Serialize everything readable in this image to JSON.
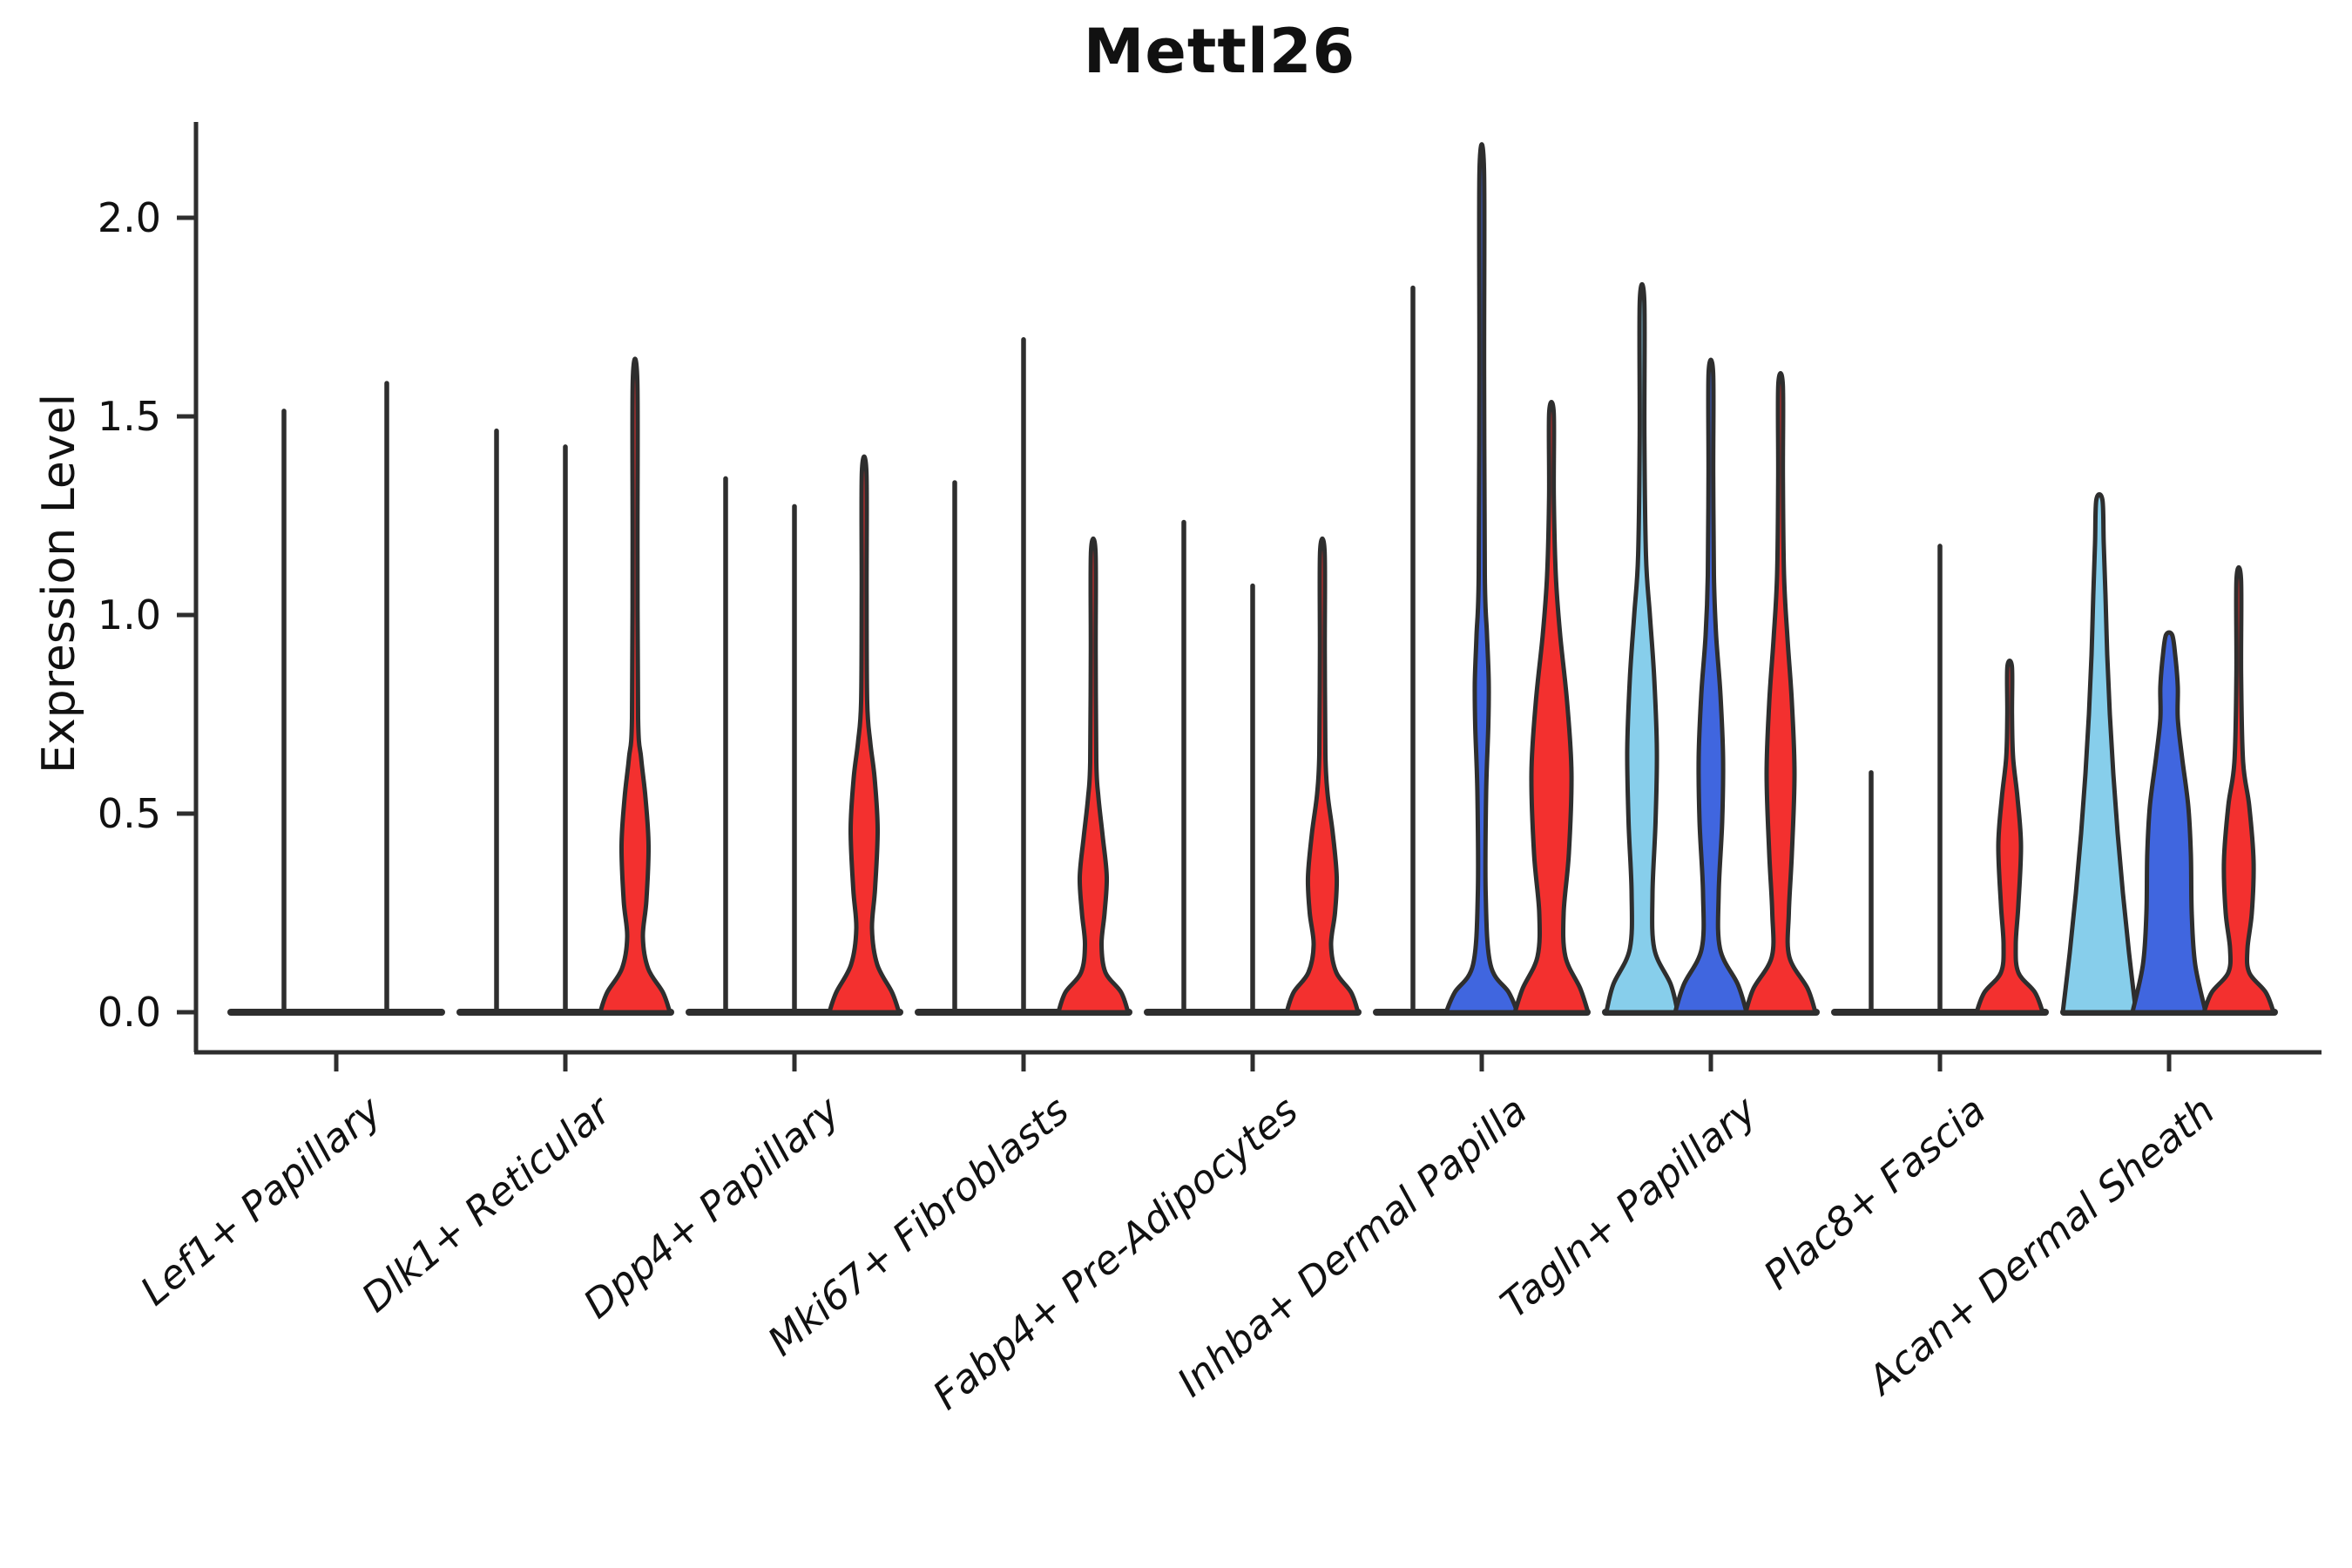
{
  "title": "Mettl26",
  "ylabel": "Expression Level",
  "palette": {
    "skyblue": "#87CEEB",
    "royalblue": "#4066DF",
    "red": "#F3302F",
    "outline": "#2E2E2E"
  },
  "chart_data": {
    "type": "violin",
    "title": "Mettl26",
    "ylabel": "Expression Level",
    "xlabel": "",
    "ylim": [
      0,
      2.23
    ],
    "yticks": [
      0.0,
      0.5,
      1.0,
      1.5,
      2.0
    ],
    "ytick_labels": [
      "0.0",
      "0.5",
      "1.0",
      "1.5",
      "2.0"
    ],
    "grid": false,
    "legend_position": "none",
    "description": "Violin plot of Mettl26 expression level across 9 fibroblast cell-type groups, 3 condition violins per group (skyblue, royalblue, red); most condition violins collapse to thin vertical lines with mass at 0.",
    "groups": [
      {
        "label": "Lef1+ Papillary",
        "cx": 386,
        "violins": [
          {
            "dx": -60,
            "kind": "spike",
            "color": "none",
            "max": 1.52
          },
          {
            "dx": 58,
            "kind": "spike",
            "color": "none",
            "max": 1.59
          }
        ]
      },
      {
        "label": "Dlk1+ Reticular",
        "cx": 649,
        "violins": [
          {
            "dx": -79,
            "kind": "spike",
            "color": "none",
            "max": 1.47
          },
          {
            "dx": 0,
            "kind": "spike",
            "color": "none",
            "max": 1.43
          },
          {
            "dx": 80,
            "kind": "shape",
            "color": "red",
            "max": 1.59,
            "bulge_center": 0.42,
            "profile": [
              [
                0,
                40
              ],
              [
                0.05,
                32
              ],
              [
                0.11,
                15
              ],
              [
                0.19,
                9
              ],
              [
                0.28,
                13
              ],
              [
                0.42,
                15.5
              ],
              [
                0.54,
                12
              ],
              [
                0.64,
                7
              ],
              [
                0.74,
                3.5
              ],
              [
                1.15,
                2.8
              ],
              [
                1.59,
                2.6
              ]
            ]
          }
        ]
      },
      {
        "label": "Dpp4+ Papillary",
        "cx": 912,
        "violins": [
          {
            "dx": -79,
            "kind": "spike",
            "color": "none",
            "max": 1.35
          },
          {
            "dx": 0,
            "kind": "spike",
            "color": "none",
            "max": 1.28
          },
          {
            "dx": 80,
            "kind": "shape",
            "color": "red",
            "max": 1.36,
            "bulge_center": 0.46,
            "profile": [
              [
                0,
                40
              ],
              [
                0.05,
                32
              ],
              [
                0.12,
                15
              ],
              [
                0.21,
                9
              ],
              [
                0.31,
                12.5
              ],
              [
                0.46,
                15.5
              ],
              [
                0.59,
                12
              ],
              [
                0.68,
                7
              ],
              [
                0.78,
                3.5
              ],
              [
                1.05,
                2.8
              ],
              [
                1.36,
                2.6
              ]
            ]
          }
        ]
      },
      {
        "label": "Mki67+ Fibroblasts",
        "cx": 1175,
        "violins": [
          {
            "dx": -79,
            "kind": "spike",
            "color": "none",
            "max": 1.34
          },
          {
            "dx": 0,
            "kind": "spike",
            "color": "none",
            "max": 1.7
          },
          {
            "dx": 80,
            "kind": "shape",
            "color": "red",
            "max": 1.16,
            "bulge_center": 0.34,
            "profile": [
              [
                0,
                40
              ],
              [
                0.05,
                32
              ],
              [
                0.1,
                14
              ],
              [
                0.17,
                9.5
              ],
              [
                0.25,
                13
              ],
              [
                0.34,
                15.5
              ],
              [
                0.44,
                11
              ],
              [
                0.54,
                6
              ],
              [
                0.63,
                3.5
              ],
              [
                0.9,
                2.8
              ],
              [
                1.16,
                2.6
              ]
            ]
          }
        ]
      },
      {
        "label": "Fabp4+ Pre-Adipocytes",
        "cx": 1438,
        "violins": [
          {
            "dx": -79,
            "kind": "spike",
            "color": "none",
            "max": 1.24
          },
          {
            "dx": 0,
            "kind": "spike",
            "color": "none",
            "max": 1.08
          },
          {
            "dx": 80,
            "kind": "shape",
            "color": "red",
            "max": 1.16,
            "bulge_center": 0.34,
            "profile": [
              [
                0,
                41
              ],
              [
                0.05,
                33
              ],
              [
                0.1,
                16
              ],
              [
                0.17,
                10
              ],
              [
                0.25,
                14.5
              ],
              [
                0.34,
                16.5
              ],
              [
                0.45,
                12
              ],
              [
                0.55,
                6
              ],
              [
                0.65,
                3.5
              ],
              [
                0.9,
                2.8
              ],
              [
                1.16,
                2.6
              ]
            ]
          }
        ]
      },
      {
        "label": "Inhba+ Dermal Papilla",
        "cx": 1701,
        "violins": [
          {
            "dx": -79,
            "kind": "spike",
            "color": "none",
            "max": 1.83
          },
          {
            "dx": 0,
            "kind": "shape",
            "color": "royalblue",
            "max": 2.12,
            "bulge_center": 0.8,
            "profile": [
              [
                0,
                41
              ],
              [
                0.05,
                31
              ],
              [
                0.12,
                10
              ],
              [
                0.3,
                4.5
              ],
              [
                0.55,
                5
              ],
              [
                0.72,
                7.5
              ],
              [
                0.83,
                8
              ],
              [
                0.95,
                6
              ],
              [
                1.1,
                3.5
              ],
              [
                1.6,
                2.7
              ],
              [
                2.12,
                2.6
              ]
            ]
          },
          {
            "dx": 80,
            "kind": "shape",
            "color": "red",
            "max": 1.51,
            "bulge_center": 0.6,
            "profile": [
              [
                0,
                42
              ],
              [
                0.06,
                33
              ],
              [
                0.14,
                16
              ],
              [
                0.25,
                14
              ],
              [
                0.4,
                20
              ],
              [
                0.6,
                23
              ],
              [
                0.78,
                18
              ],
              [
                0.95,
                10
              ],
              [
                1.1,
                5
              ],
              [
                1.3,
                2.7
              ],
              [
                1.51,
                2.6
              ]
            ]
          }
        ]
      },
      {
        "label": "Tagln+ Papillary",
        "cx": 1964,
        "violins": [
          {
            "dx": -79,
            "kind": "shape",
            "color": "skyblue",
            "max": 1.79,
            "bulge_center": 0.66,
            "profile": [
              [
                0,
                41
              ],
              [
                0.07,
                33
              ],
              [
                0.16,
                14
              ],
              [
                0.3,
                12
              ],
              [
                0.48,
                15.5
              ],
              [
                0.66,
                17
              ],
              [
                0.84,
                14
              ],
              [
                1.0,
                9
              ],
              [
                1.15,
                4.5
              ],
              [
                1.45,
                2.7
              ],
              [
                1.79,
                2.6
              ]
            ]
          },
          {
            "dx": 0,
            "kind": "shape",
            "color": "royalblue",
            "max": 1.61,
            "bulge_center": 0.64,
            "profile": [
              [
                0,
                41
              ],
              [
                0.07,
                31
              ],
              [
                0.16,
                10.5
              ],
              [
                0.3,
                9
              ],
              [
                0.48,
                13
              ],
              [
                0.64,
                14
              ],
              [
                0.8,
                11
              ],
              [
                0.95,
                6
              ],
              [
                1.1,
                3.5
              ],
              [
                1.35,
                2.7
              ],
              [
                1.61,
                2.6
              ]
            ]
          },
          {
            "dx": 80,
            "kind": "shape",
            "color": "red",
            "max": 1.58,
            "bulge_center": 0.6,
            "profile": [
              [
                0,
                40
              ],
              [
                0.06,
                31
              ],
              [
                0.14,
                10
              ],
              [
                0.25,
                9.5
              ],
              [
                0.4,
                13
              ],
              [
                0.6,
                16
              ],
              [
                0.78,
                13
              ],
              [
                0.94,
                8
              ],
              [
                1.1,
                4
              ],
              [
                1.35,
                2.7
              ],
              [
                1.58,
                2.6
              ]
            ]
          }
        ]
      },
      {
        "label": "Plac8+ Fascia",
        "cx": 2227,
        "violins": [
          {
            "dx": -79,
            "kind": "spike",
            "color": "none",
            "max": 0.61
          },
          {
            "dx": 0,
            "kind": "spike",
            "color": "none",
            "max": 1.18
          },
          {
            "dx": 80,
            "kind": "shape",
            "color": "red",
            "max": 0.87,
            "bulge_center": 0.42,
            "profile": [
              [
                0,
                38
              ],
              [
                0.05,
                29
              ],
              [
                0.1,
                10
              ],
              [
                0.17,
                7
              ],
              [
                0.27,
                10
              ],
              [
                0.42,
                13
              ],
              [
                0.54,
                9
              ],
              [
                0.64,
                4
              ],
              [
                0.75,
                2.7
              ],
              [
                0.87,
                2.6
              ]
            ]
          }
        ]
      },
      {
        "label": "Acan+ Dermal Sheath",
        "cx": 2490,
        "violins": [
          {
            "dx": -80,
            "kind": "shape",
            "color": "skyblue",
            "max": 1.31,
            "bulge_center": 0.0,
            "profile": [
              [
                0,
                42
              ],
              [
                0.15,
                34
              ],
              [
                0.3,
                27
              ],
              [
                0.45,
                21
              ],
              [
                0.6,
                16
              ],
              [
                0.75,
                12
              ],
              [
                0.9,
                9
              ],
              [
                1.05,
                7
              ],
              [
                1.18,
                5
              ],
              [
                1.29,
                3.5
              ]
            ]
          },
          {
            "dx": 0,
            "kind": "shape",
            "color": "royalblue",
            "max": 0.95,
            "bulge_center": 0.3,
            "profile": [
              [
                0,
                42
              ],
              [
                0.12,
                30
              ],
              [
                0.25,
                26
              ],
              [
                0.4,
                25
              ],
              [
                0.52,
                22
              ],
              [
                0.64,
                15
              ],
              [
                0.74,
                10
              ],
              [
                0.82,
                10
              ],
              [
                0.9,
                7
              ],
              [
                0.95,
                3.5
              ]
            ]
          },
          {
            "dx": 80,
            "kind": "shape",
            "color": "red",
            "max": 1.09,
            "bulge_center": 0.38,
            "profile": [
              [
                0,
                40
              ],
              [
                0.05,
                31
              ],
              [
                0.1,
                12
              ],
              [
                0.16,
                10
              ],
              [
                0.25,
                15
              ],
              [
                0.38,
                17
              ],
              [
                0.52,
                12
              ],
              [
                0.63,
                5
              ],
              [
                0.85,
                2.7
              ],
              [
                1.09,
                2.6
              ]
            ]
          }
        ]
      }
    ]
  }
}
